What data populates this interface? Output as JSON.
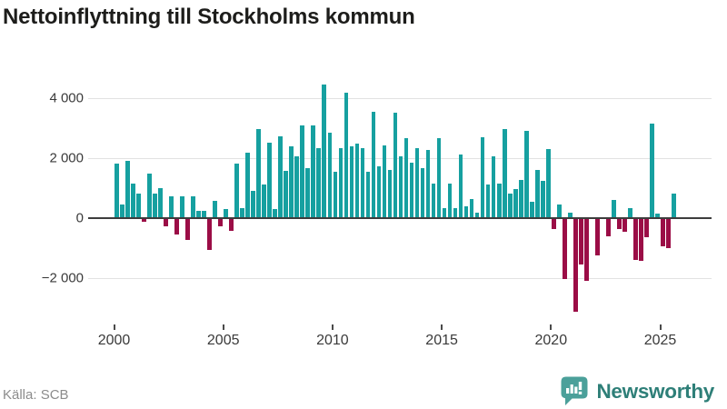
{
  "title": "Nettoinflyttning till Stockholms kommun",
  "source": "Källa: SCB",
  "logo": {
    "text": "Newsworthy",
    "icon": "speech-bubble-bar-chart-icon"
  },
  "colors": {
    "positive_bar": "#16a0a0",
    "negative_bar": "#9b0d46",
    "gridline": "#e2e2e2",
    "zero_line": "#3d3d3d",
    "axis_text": "#3a3a3a",
    "title_text": "#1d1d1b",
    "source_text": "#8c8c8c",
    "logo_icon": "#4ba09a",
    "logo_text": "#2e7f78"
  },
  "chart_data": {
    "type": "bar",
    "title": "Nettoinflyttning till Stockholms kommun",
    "xlabel": "",
    "ylabel": "",
    "frequency": "quarterly",
    "start": "2000-Q1",
    "end": "2025-Q3",
    "grid": "horizontal",
    "legend": "none",
    "ylim": [
      -3400,
      4700
    ],
    "y_ticks": [
      4000,
      2000,
      0,
      -2000
    ],
    "y_tick_labels": [
      "4 000",
      "2 000",
      "0",
      "−2 000"
    ],
    "x_tick_years": [
      2000,
      2005,
      2010,
      2015,
      2020,
      2025
    ],
    "x_tick_labels": [
      "2000",
      "2005",
      "2010",
      "2015",
      "2020",
      "2025"
    ],
    "series_by_year": [
      {
        "year": 2000,
        "q": [
          1820,
          460,
          1920,
          1140
        ]
      },
      {
        "year": 2001,
        "q": [
          810,
          -130,
          1470,
          830
        ]
      },
      {
        "year": 2002,
        "q": [
          990,
          -270,
          740,
          -550
        ]
      },
      {
        "year": 2003,
        "q": [
          740,
          -740,
          730,
          230
        ]
      },
      {
        "year": 2004,
        "q": [
          250,
          -1060,
          580,
          -270
        ]
      },
      {
        "year": 2005,
        "q": [
          300,
          -430,
          1820,
          330
        ]
      },
      {
        "year": 2006,
        "q": [
          2170,
          910,
          2980,
          1110
        ]
      },
      {
        "year": 2007,
        "q": [
          2530,
          300,
          2730,
          1570
        ]
      },
      {
        "year": 2008,
        "q": [
          2400,
          2070,
          3080,
          1670
        ]
      },
      {
        "year": 2009,
        "q": [
          3100,
          2340,
          4450,
          2850
        ]
      },
      {
        "year": 2010,
        "q": [
          1540,
          2340,
          4190,
          2390
        ]
      },
      {
        "year": 2011,
        "q": [
          2490,
          2340,
          1540,
          3560
        ]
      },
      {
        "year": 2012,
        "q": [
          1740,
          2420,
          1620,
          3510
        ]
      },
      {
        "year": 2013,
        "q": [
          2060,
          2680,
          1840,
          2320
        ]
      },
      {
        "year": 2014,
        "q": [
          1670,
          2260,
          1150,
          2680
        ]
      },
      {
        "year": 2015,
        "q": [
          320,
          1150,
          340,
          2110
        ]
      },
      {
        "year": 2016,
        "q": [
          400,
          650,
          190,
          2700
        ]
      },
      {
        "year": 2017,
        "q": [
          1130,
          2050,
          1160,
          2980
        ]
      },
      {
        "year": 2018,
        "q": [
          810,
          980,
          1260,
          2900
        ]
      },
      {
        "year": 2019,
        "q": [
          560,
          1620,
          1230,
          2290
        ]
      },
      {
        "year": 2020,
        "q": [
          -350,
          460,
          -2040,
          180
        ]
      },
      {
        "year": 2021,
        "q": [
          -3110,
          -1540,
          -2100,
          -20
        ]
      },
      {
        "year": 2022,
        "q": [
          -1240,
          20,
          -610,
          610
        ]
      },
      {
        "year": 2023,
        "q": [
          -370,
          -460,
          320,
          -1390
        ]
      },
      {
        "year": 2024,
        "q": [
          -1430,
          -630,
          3140,
          140
        ]
      },
      {
        "year": 2025,
        "q": [
          -930,
          -1010,
          830
        ]
      }
    ]
  }
}
